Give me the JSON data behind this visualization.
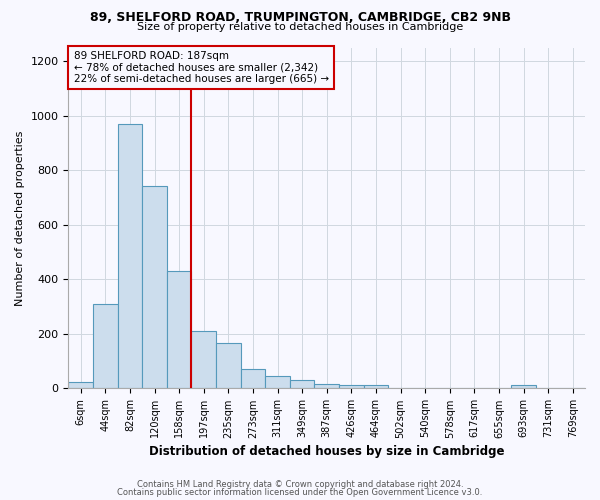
{
  "title": "89, SHELFORD ROAD, TRUMPINGTON, CAMBRIDGE, CB2 9NB",
  "subtitle": "Size of property relative to detached houses in Cambridge",
  "xlabel": "Distribution of detached houses by size in Cambridge",
  "ylabel": "Number of detached properties",
  "bar_labels": [
    "6sqm",
    "44sqm",
    "82sqm",
    "120sqm",
    "158sqm",
    "197sqm",
    "235sqm",
    "273sqm",
    "311sqm",
    "349sqm",
    "387sqm",
    "426sqm",
    "464sqm",
    "502sqm",
    "540sqm",
    "578sqm",
    "617sqm",
    "655sqm",
    "693sqm",
    "731sqm",
    "769sqm"
  ],
  "bar_values": [
    25,
    308,
    968,
    743,
    430,
    210,
    165,
    70,
    45,
    30,
    15,
    12,
    12,
    0,
    0,
    0,
    0,
    0,
    12,
    0,
    0
  ],
  "bar_color": "#ccdded",
  "bar_edge_color": "#5599bb",
  "vline_color": "#cc0000",
  "annotation_line1": "89 SHELFORD ROAD: 187sqm",
  "annotation_line2": "← 78% of detached houses are smaller (2,342)",
  "annotation_line3": "22% of semi-detached houses are larger (665) →",
  "annotation_box_color": "#cc0000",
  "ylim": [
    0,
    1250
  ],
  "yticks": [
    0,
    200,
    400,
    600,
    800,
    1000,
    1200
  ],
  "footer1": "Contains HM Land Registry data © Crown copyright and database right 2024.",
  "footer2": "Contains public sector information licensed under the Open Government Licence v3.0.",
  "background_color": "#f8f8ff",
  "grid_color": "#d0d8e0"
}
